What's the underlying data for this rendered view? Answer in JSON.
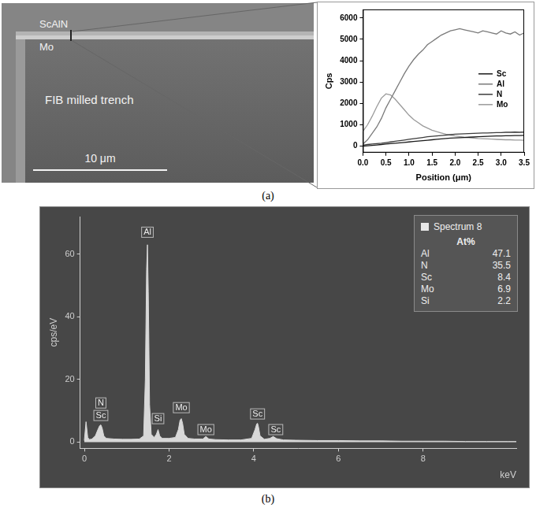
{
  "chart_data": [
    {
      "type": "line",
      "xlabel": "Position (μm)",
      "ylabel": "Cps",
      "x": [
        0,
        0.1,
        0.2,
        0.3,
        0.4,
        0.5,
        0.6,
        0.7,
        0.8,
        0.9,
        1,
        1.1,
        1.2,
        1.3,
        1.4,
        1.5,
        1.6,
        1.7,
        1.8,
        1.9,
        2,
        2.1,
        2.2,
        2.3,
        2.4,
        2.5,
        2.6,
        2.7,
        2.8,
        2.9,
        3,
        3.1,
        3.2,
        3.3,
        3.4,
        3.5
      ],
      "series": [
        {
          "name": "Sc",
          "color": "#1a1a1a",
          "values": [
            0,
            20,
            40,
            60,
            80,
            100,
            120,
            140,
            160,
            180,
            200,
            220,
            240,
            260,
            280,
            300,
            320,
            340,
            360,
            380,
            390,
            400,
            410,
            420,
            430,
            440,
            450,
            460,
            470,
            480,
            480,
            490,
            490,
            500,
            500,
            510
          ]
        },
        {
          "name": "Al",
          "color": "#7a7a7a",
          "values": [
            100,
            300,
            600,
            900,
            1300,
            1800,
            2200,
            2600,
            3000,
            3400,
            3750,
            4050,
            4300,
            4500,
            4750,
            4900,
            5050,
            5200,
            5300,
            5400,
            5450,
            5500,
            5450,
            5400,
            5350,
            5300,
            5400,
            5350,
            5300,
            5250,
            5400,
            5300,
            5250,
            5350,
            5200,
            5300
          ]
        },
        {
          "name": "N",
          "color": "#3c3c3c",
          "values": [
            50,
            80,
            100,
            120,
            140,
            170,
            200,
            230,
            260,
            290,
            320,
            350,
            380,
            410,
            440,
            460,
            480,
            500,
            520,
            540,
            560,
            570,
            580,
            590,
            600,
            610,
            620,
            620,
            630,
            640,
            640,
            650,
            650,
            660,
            650,
            660
          ]
        },
        {
          "name": "Mo",
          "color": "#9a9a9a",
          "values": [
            700,
            1000,
            1400,
            1850,
            2250,
            2450,
            2400,
            2200,
            1950,
            1700,
            1450,
            1250,
            1100,
            950,
            850,
            750,
            680,
            620,
            560,
            520,
            480,
            450,
            420,
            400,
            380,
            360,
            350,
            340,
            330,
            320,
            310,
            300,
            300,
            290,
            290,
            280
          ]
        }
      ],
      "xlim": [
        0,
        3.5
      ],
      "xticks": [
        {
          "value": 0,
          "label": "0.0"
        },
        0.5,
        {
          "value": 1,
          "label": "1.0"
        },
        1.5,
        {
          "value": 2,
          "label": "2.0"
        },
        2.5,
        {
          "value": 3,
          "label": "3.0"
        },
        3.5
      ],
      "ylim": [
        -300,
        6400
      ],
      "yticks": [
        0,
        1000,
        2000,
        3000,
        4000,
        5000,
        6000
      ],
      "grid": false,
      "legend": "right"
    },
    {
      "type": "area",
      "xlabel": "keV",
      "ylabel": "cps/eV",
      "x": [
        0,
        0.04,
        0.08,
        0.12,
        0.18,
        0.26,
        0.32,
        0.36,
        0.39,
        0.42,
        0.46,
        0.52,
        0.7,
        0.9,
        1.1,
        1.3,
        1.4,
        1.44,
        1.47,
        1.49,
        1.51,
        1.54,
        1.58,
        1.65,
        1.7,
        1.74,
        1.78,
        1.84,
        2.0,
        2.15,
        2.22,
        2.26,
        2.29,
        2.32,
        2.36,
        2.45,
        2.6,
        2.8,
        2.87,
        2.94,
        3.1,
        3.4,
        3.7,
        3.95,
        4.03,
        4.07,
        4.09,
        4.11,
        4.15,
        4.25,
        4.38,
        4.46,
        4.54,
        4.7,
        5.0,
        5.5,
        6.0,
        6.5,
        7.0,
        7.5,
        8.0,
        8.5,
        9.0,
        9.5,
        10.0,
        10.2
      ],
      "values": [
        0.5,
        6.5,
        1.5,
        0.8,
        1.0,
        2.0,
        4.0,
        5.2,
        5.5,
        4.5,
        2.0,
        1.2,
        1.0,
        0.9,
        0.9,
        1.0,
        2.0,
        20,
        55,
        63,
        48,
        12,
        2.5,
        1.5,
        2.5,
        4.0,
        2.0,
        1.2,
        1.2,
        1.5,
        4.0,
        7.0,
        7.5,
        6.0,
        2.5,
        1.2,
        1.0,
        1.0,
        1.8,
        1.0,
        0.8,
        0.7,
        0.7,
        1.2,
        4.0,
        5.8,
        6.0,
        5.0,
        2.0,
        0.9,
        1.2,
        1.8,
        1.1,
        0.7,
        0.6,
        0.5,
        0.5,
        0.4,
        0.4,
        0.3,
        0.3,
        0.3,
        0.2,
        0.2,
        0.2,
        0.2
      ],
      "color": "#d8d8d8",
      "xlim": [
        -0.1,
        10.2
      ],
      "xticks": [
        0,
        2,
        4,
        6,
        8
      ],
      "ylim": [
        -2,
        72
      ],
      "yticks": [
        0,
        20,
        40,
        60
      ],
      "grid": false,
      "annotations": [
        {
          "text": "Al",
          "x": 1.49,
          "y": 67
        },
        {
          "text": "N",
          "x": 0.39,
          "y": 12.5
        },
        {
          "text": "Sc",
          "x": 0.39,
          "y": 8.5
        },
        {
          "text": "Si",
          "x": 1.74,
          "y": 7.5
        },
        {
          "text": "Mo",
          "x": 2.29,
          "y": 11
        },
        {
          "text": "Mo",
          "x": 2.87,
          "y": 4
        },
        {
          "text": "Sc",
          "x": 4.09,
          "y": 9
        },
        {
          "text": "Sc",
          "x": 4.52,
          "y": 4
        }
      ],
      "table": {
        "title": "Spectrum 8",
        "header": "At%",
        "rows": [
          [
            "Al",
            47.1
          ],
          [
            "N",
            35.5
          ],
          [
            "Sc",
            8.4
          ],
          [
            "Mo",
            6.9
          ],
          [
            "Si",
            2.2
          ]
        ]
      }
    }
  ],
  "image": {
    "labels": [
      "ScAlN",
      "Mo",
      "FIB milled trench"
    ],
    "scale_bar": "10 μm"
  },
  "captions": [
    "(a)",
    "(b)"
  ]
}
